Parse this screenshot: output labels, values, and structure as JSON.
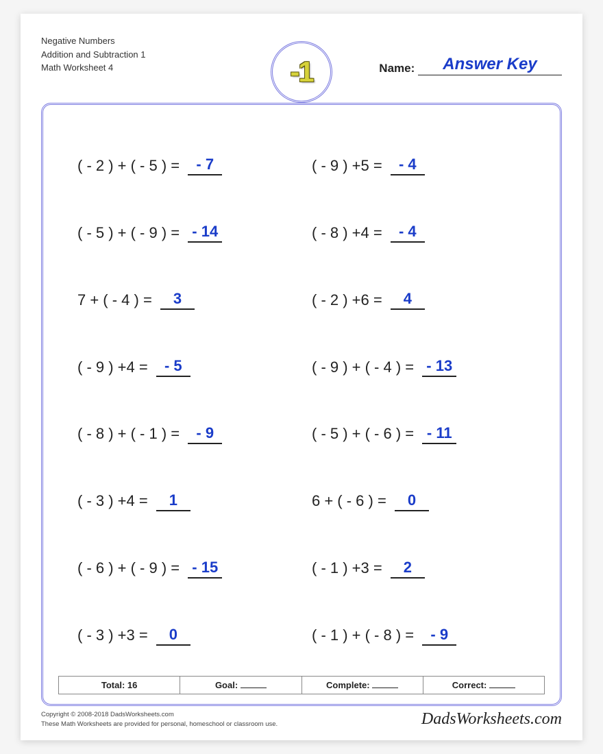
{
  "header": {
    "line1": "Negative Numbers",
    "line2": "Addition and Subtraction 1",
    "line3": "Math Worksheet 4",
    "badge_text": "-1",
    "badge_text_color": "#d6d23a",
    "badge_border_color": "#7a7ae0",
    "name_label": "Name:",
    "name_value": "Answer Key"
  },
  "style": {
    "page_bg": "#ffffff",
    "frame_border_color": "#7a7ae0",
    "problem_fontsize": 22,
    "problem_color": "#222222",
    "answer_color": "#1a3cc9",
    "answer_underline_color": "#222222",
    "columns": 2,
    "rows": 8
  },
  "problems": [
    {
      "expr": "( - 2 ) + ( - 5 ) = ",
      "ans": "- 7"
    },
    {
      "expr": "( - 9 ) +5 = ",
      "ans": "- 4"
    },
    {
      "expr": "( - 5 ) + ( - 9 ) = ",
      "ans": "- 14"
    },
    {
      "expr": "( - 8 ) +4 = ",
      "ans": "- 4"
    },
    {
      "expr": "7 + ( - 4 ) = ",
      "ans": "3"
    },
    {
      "expr": "( - 2 ) +6 = ",
      "ans": "4"
    },
    {
      "expr": "( - 9 ) +4 = ",
      "ans": "- 5"
    },
    {
      "expr": "( - 9 ) + ( - 4 ) = ",
      "ans": "- 13"
    },
    {
      "expr": "( - 8 ) + ( - 1 ) = ",
      "ans": "- 9"
    },
    {
      "expr": "( - 5 ) + ( - 6 ) = ",
      "ans": "- 11"
    },
    {
      "expr": "( - 3 ) +4 = ",
      "ans": "1"
    },
    {
      "expr": "6 + ( - 6 ) = ",
      "ans": "0"
    },
    {
      "expr": "( - 6 ) + ( - 9 ) = ",
      "ans": "- 15"
    },
    {
      "expr": "( - 1 ) +3 = ",
      "ans": "2"
    },
    {
      "expr": "( - 3 ) +3 = ",
      "ans": "0"
    },
    {
      "expr": "( - 1 ) + ( - 8 ) = ",
      "ans": "- 9"
    }
  ],
  "stats": {
    "total_label": "Total: 16",
    "goal_label": "Goal:",
    "complete_label": "Complete:",
    "correct_label": "Correct:"
  },
  "footer": {
    "copyright": "Copyright © 2008-2018 DadsWorksheets.com",
    "note": "These Math Worksheets are provided for personal, homeschool or classroom use.",
    "brand": "DadsWorksheets.com"
  }
}
